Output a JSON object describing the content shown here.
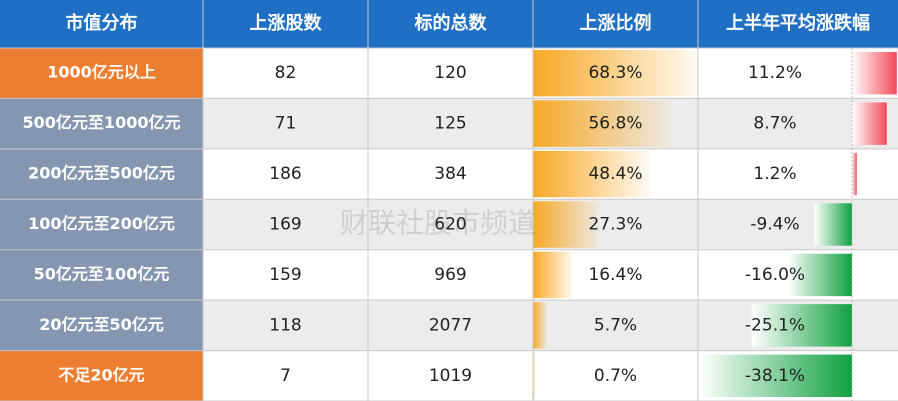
{
  "table": {
    "header": [
      "市值分布",
      "上涨股数",
      "标的总数",
      "上涨比例",
      "上半年平均涨跌幅"
    ],
    "rows": [
      [
        "1000亿元以上",
        "82",
        "120",
        "68.3%",
        "11.2%"
      ],
      [
        "500亿元至1000亿元",
        "71",
        "125",
        "56.8%",
        "8.7%"
      ],
      [
        "200亿元至500亿元",
        "186",
        "384",
        "48.4%",
        "1.2%"
      ],
      [
        "100亿元至200亿元",
        "169",
        "620",
        "27.3%",
        "-9.4%"
      ],
      [
        "50亿元至100亿元",
        "159",
        "969",
        "16.4%",
        "-16.0%"
      ],
      [
        "20亿元至50亿元",
        "118",
        "2077",
        "5.7%",
        "-25.1%"
      ],
      [
        "不足20亿元",
        "7",
        "1019",
        "0.7%",
        "-38.1%"
      ]
    ]
  },
  "watermark": "财联社股市频道"
}
